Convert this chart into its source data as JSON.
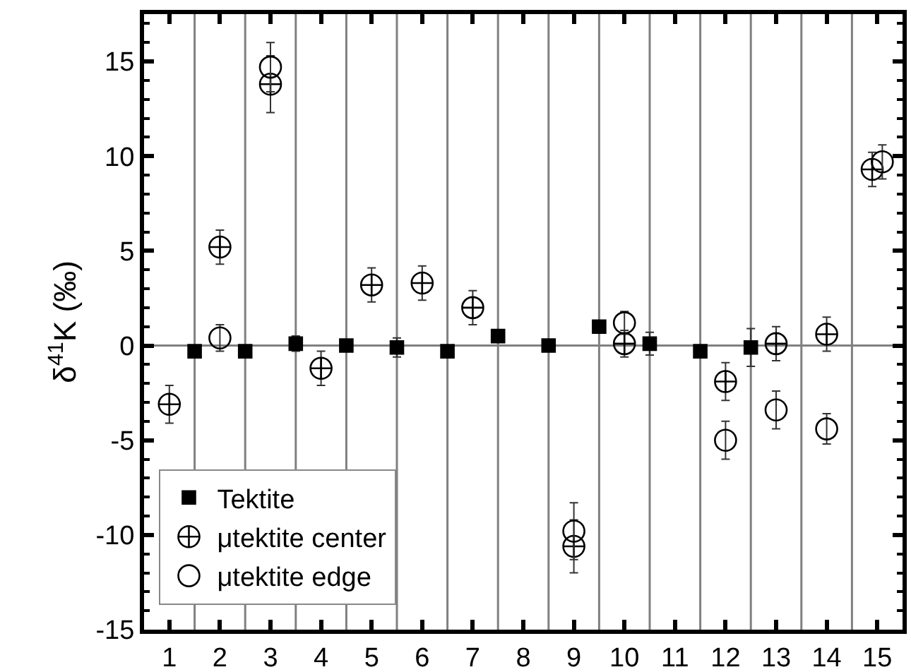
{
  "chart_data": {
    "type": "scatter",
    "ylabel": "δ$^{41}$K (‰)",
    "xlim": [
      0.5,
      15.5
    ],
    "xticks": [
      1,
      2,
      3,
      4,
      5,
      6,
      7,
      8,
      9,
      10,
      11,
      12,
      13,
      14,
      15
    ],
    "ylim": [
      -15,
      17.5
    ],
    "yticks": [
      -15,
      -10,
      -5,
      0,
      5,
      10,
      15
    ],
    "grid": false,
    "legend": "bottom left",
    "series": [
      {
        "name": "Tektite",
        "color": "#000000",
        "marker": "square",
        "x": [
          1.5,
          2.5,
          3.5,
          4.5,
          5.5,
          6.5,
          7.5,
          8.5,
          9.5,
          10.5,
          11.5,
          12.5
        ],
        "values": [
          -0.3,
          -0.3,
          0.1,
          0.0,
          -0.1,
          -0.3,
          0.5,
          0.0,
          1.0,
          0.1,
          -0.3,
          -0.1
        ],
        "errors": [
          null,
          null,
          0.4,
          null,
          0.5,
          null,
          null,
          null,
          null,
          0.6,
          null,
          1.0
        ]
      },
      {
        "name": "μtektite center",
        "color": "#000000",
        "marker": "cross",
        "x": [
          1,
          2,
          3,
          4,
          5,
          6,
          7,
          9,
          10,
          12,
          13,
          14,
          14.9
        ],
        "values": [
          -3.1,
          5.2,
          13.8,
          -1.2,
          3.2,
          3.3,
          2.0,
          -10.6,
          0.1,
          -1.9,
          0.1,
          0.6,
          9.3
        ],
        "errors": [
          1.0,
          0.9,
          1.5,
          0.9,
          0.9,
          0.9,
          0.9,
          1.4,
          0.7,
          1.0,
          0.9,
          0.9,
          0.9
        ]
      },
      {
        "name": "μtektite edge",
        "color": "#000000",
        "marker": "circle",
        "x": [
          2,
          3,
          9,
          10,
          12,
          13,
          14,
          15.1
        ],
        "values": [
          0.4,
          14.7,
          -9.8,
          1.2,
          -5.0,
          -3.4,
          -4.4,
          9.7
        ],
        "errors": [
          0.7,
          1.3,
          1.5,
          0.6,
          1.0,
          1.0,
          0.8,
          0.9
        ]
      }
    ],
    "ref_lines": [
      {
        "axis": "y",
        "value": 0,
        "color": "#808080"
      },
      {
        "axis": "x",
        "value": 1.5,
        "color": "#808080"
      },
      {
        "axis": "x",
        "value": 2.5,
        "color": "#808080"
      },
      {
        "axis": "x",
        "value": 3.5,
        "color": "#808080"
      },
      {
        "axis": "x",
        "value": 4.5,
        "color": "#808080"
      },
      {
        "axis": "x",
        "value": 5.5,
        "color": "#808080"
      },
      {
        "axis": "x",
        "value": 6.5,
        "color": "#808080"
      },
      {
        "axis": "x",
        "value": 7.5,
        "color": "#808080"
      },
      {
        "axis": "x",
        "value": 8.5,
        "color": "#808080"
      },
      {
        "axis": "x",
        "value": 9.5,
        "color": "#808080"
      },
      {
        "axis": "x",
        "value": 10.5,
        "color": "#808080"
      },
      {
        "axis": "x",
        "value": 11.5,
        "color": "#808080"
      },
      {
        "axis": "x",
        "value": 12.5,
        "color": "#808080"
      },
      {
        "axis": "x",
        "value": 13.5,
        "color": "#808080"
      },
      {
        "axis": "x",
        "value": 14.5,
        "color": "#808080"
      }
    ]
  }
}
